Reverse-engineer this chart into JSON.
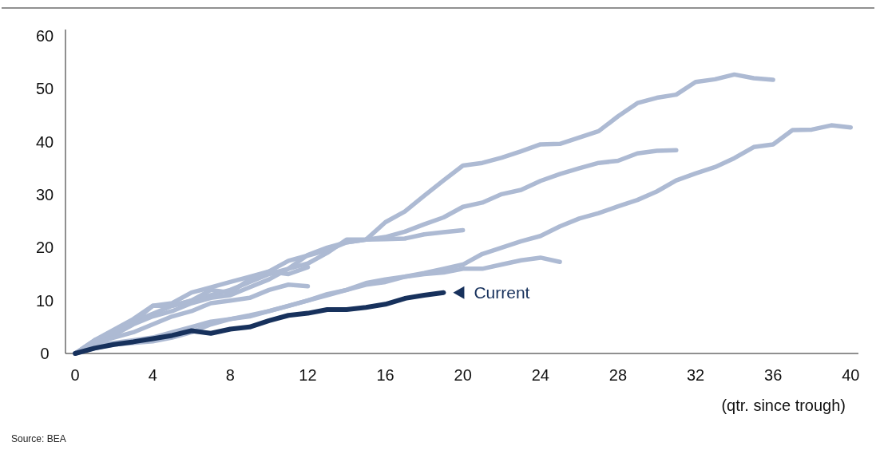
{
  "chart_data": {
    "type": "line",
    "xlabel": "(qtr. since trough)",
    "xlim": [
      -0.5,
      40.4
    ],
    "xticks": [
      0,
      4,
      8,
      12,
      16,
      20,
      24,
      28,
      32,
      36,
      40
    ],
    "ylim": [
      0,
      61.2
    ],
    "yticks": [
      0,
      10,
      20,
      30,
      40,
      50,
      60
    ],
    "grid": false,
    "legend": "right",
    "marker": "none",
    "line_style": "solid",
    "annotations": [
      "Source: BEA"
    ],
    "series": [
      {
        "color": "#adbad3",
        "x": [
          0,
          1,
          2,
          3,
          4,
          5,
          6,
          7,
          8,
          9,
          10,
          11,
          12,
          13,
          14,
          15,
          16,
          17,
          18,
          19,
          20,
          21,
          22,
          23,
          24,
          25,
          26,
          27,
          28,
          29,
          30,
          31,
          32,
          33,
          34,
          35,
          36
        ],
        "values": [
          0,
          2,
          4,
          6,
          7.5,
          9,
          10,
          11,
          12,
          13.5,
          15,
          16,
          18.6,
          20,
          21,
          21.5,
          24.8,
          26.8,
          29.8,
          32.7,
          35.5,
          36,
          37,
          38.2,
          39.5,
          39.6,
          40.8,
          42,
          44.8,
          47.3,
          48.3,
          48.9,
          51.3,
          51.8,
          52.7,
          52,
          51.7
        ]
      },
      {
        "color": "#adbad3",
        "x": [
          0,
          1,
          2,
          3,
          4,
          5,
          6,
          7,
          8,
          9,
          10,
          11,
          12,
          13,
          14,
          15,
          16,
          17,
          18,
          19,
          20,
          21,
          22,
          23,
          24,
          25,
          26,
          27,
          28,
          29,
          30,
          31
        ],
        "values": [
          0,
          2.5,
          4.5,
          6.5,
          9,
          9.5,
          11.5,
          12.5,
          13.5,
          14.5,
          15.5,
          17.5,
          18.5,
          19.5,
          21,
          21.5,
          22,
          23,
          24.4,
          25.7,
          27.7,
          28.5,
          30.1,
          30.9,
          32.6,
          33.9,
          35,
          36,
          36.4,
          37.8,
          38.3,
          38.4
        ]
      },
      {
        "color": "#adbad3",
        "x": [
          0,
          1,
          2,
          3,
          4,
          5,
          6,
          7,
          8,
          9,
          10,
          11,
          12,
          13,
          14,
          15,
          16,
          17,
          18,
          19,
          20
        ],
        "values": [
          0,
          2,
          3.5,
          5.5,
          7,
          8,
          9.5,
          10.5,
          11,
          12.5,
          14,
          16,
          17,
          19,
          21.5,
          21.5,
          21.6,
          21.7,
          22.5,
          22.9,
          23.3
        ]
      },
      {
        "color": "#adbad3",
        "x": [
          0,
          1,
          2,
          3,
          4,
          5,
          6,
          7,
          8,
          9,
          10,
          11,
          12,
          13,
          14,
          15,
          16,
          17,
          18,
          19,
          20,
          21,
          22,
          23,
          24,
          25,
          26,
          27,
          28,
          29,
          30,
          31,
          32,
          33,
          34,
          35,
          36,
          37,
          38,
          39,
          40
        ],
        "values": [
          0,
          1.5,
          2,
          2.5,
          3,
          4,
          5,
          6,
          6.5,
          7.2,
          8,
          9,
          10,
          11.2,
          12,
          13.3,
          14,
          14.5,
          15.2,
          16,
          16.8,
          18.8,
          20,
          21.2,
          22.2,
          24,
          25.5,
          26.5,
          27.8,
          29,
          30.6,
          32.7,
          34,
          35.2,
          36.9,
          39,
          39.5,
          42.2,
          42.3,
          43.1,
          42.7
        ]
      },
      {
        "color": "#adbad3",
        "x": [
          0,
          1,
          2,
          3,
          4,
          5,
          6,
          7,
          8,
          9,
          10,
          11,
          12,
          13,
          14,
          15,
          16,
          17,
          18,
          19,
          20,
          21,
          22,
          23,
          24,
          25
        ],
        "values": [
          0,
          1,
          1.7,
          2,
          2.3,
          3,
          4,
          5.5,
          6.5,
          7,
          8,
          9,
          10,
          11,
          12,
          13,
          13.5,
          14.5,
          15,
          15.3,
          16,
          16,
          16.8,
          17.6,
          18.1,
          17.3
        ]
      },
      {
        "color": "#adbad3",
        "x": [
          0,
          1,
          2,
          3,
          4,
          5,
          6,
          7,
          8,
          9,
          10,
          11,
          12
        ],
        "values": [
          0,
          2.5,
          4,
          6,
          9,
          9,
          10,
          12,
          11.5,
          14,
          15.5,
          15,
          16.3
        ]
      },
      {
        "color": "#adbad3",
        "x": [
          0,
          1,
          2,
          3,
          4,
          5,
          6,
          7,
          8,
          9,
          10,
          11,
          12
        ],
        "values": [
          0,
          2,
          3,
          4,
          5.5,
          7,
          8,
          9.5,
          10,
          10.5,
          12,
          13,
          12.7
        ]
      },
      {
        "name": "Current",
        "color": "#17315c",
        "x": [
          0,
          1,
          2,
          3,
          4,
          5,
          6,
          7,
          8,
          9,
          10,
          11,
          12,
          13,
          14,
          15,
          16,
          17,
          18,
          19
        ],
        "values": [
          0,
          1,
          1.7,
          2.2,
          2.8,
          3.4,
          4.3,
          3.8,
          4.6,
          5,
          6.2,
          7.2,
          7.6,
          8.3,
          8.3,
          8.7,
          9.3,
          10.4,
          11,
          11.5
        ]
      }
    ]
  }
}
